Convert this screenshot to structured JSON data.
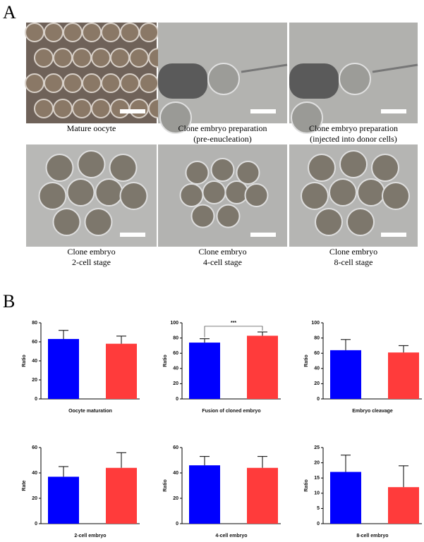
{
  "panel_labels": [
    "A",
    "B"
  ],
  "images": [
    {
      "caption": [
        "Mature oocyte"
      ]
    },
    {
      "caption": [
        "Clone embryo preparation",
        "(pre-enucleation)"
      ]
    },
    {
      "caption": [
        "Clone embryo preparation",
        "(injected into donor cells)"
      ]
    },
    {
      "caption": [
        "Clone embryo",
        "2-cell stage"
      ]
    },
    {
      "caption": [
        "Clone embryo",
        "4-cell stage"
      ]
    },
    {
      "caption": [
        "Clone embryo",
        "8-cell stage"
      ]
    }
  ],
  "chart_data": [
    {
      "type": "bar",
      "xlabel": "Oocyte maturation",
      "ylabel": "Ratio",
      "values": [
        63,
        58
      ],
      "errors": [
        9,
        8
      ],
      "colors": [
        "#0000ff",
        "#ff3b3b"
      ],
      "ylim": [
        0,
        80
      ],
      "yticks": [
        0,
        20,
        40,
        60,
        80
      ]
    },
    {
      "type": "bar",
      "xlabel": "Fusion of cloned embryo",
      "ylabel": "Ratio",
      "annotation": "***",
      "values": [
        74,
        83
      ],
      "errors": [
        5,
        5
      ],
      "colors": [
        "#0000ff",
        "#ff3b3b"
      ],
      "ylim": [
        0,
        100
      ],
      "yticks": [
        0,
        20,
        40,
        60,
        80,
        100
      ]
    },
    {
      "type": "bar",
      "xlabel": "Embryo cleavage",
      "ylabel": "Ratio",
      "values": [
        64,
        61
      ],
      "errors": [
        14,
        9
      ],
      "colors": [
        "#0000ff",
        "#ff3b3b"
      ],
      "ylim": [
        0,
        100
      ],
      "yticks": [
        0,
        20,
        40,
        60,
        80,
        100
      ]
    },
    {
      "type": "bar",
      "xlabel": "2-cell embryo",
      "ylabel": "Rate",
      "values": [
        37,
        44
      ],
      "errors": [
        8,
        12
      ],
      "colors": [
        "#0000ff",
        "#ff3b3b"
      ],
      "ylim": [
        0,
        60
      ],
      "yticks": [
        0,
        20,
        40,
        60
      ]
    },
    {
      "type": "bar",
      "xlabel": "4-cell embryo",
      "ylabel": "Ratio",
      "values": [
        46,
        44
      ],
      "errors": [
        7,
        9
      ],
      "colors": [
        "#0000ff",
        "#ff3b3b"
      ],
      "ylim": [
        0,
        60
      ],
      "yticks": [
        0,
        20,
        40,
        60
      ]
    },
    {
      "type": "bar",
      "xlabel": "8-cell embryo",
      "ylabel": "Ratio",
      "values": [
        17,
        12
      ],
      "errors": [
        5.5,
        7
      ],
      "colors": [
        "#0000ff",
        "#ff3b3b"
      ],
      "ylim": [
        0,
        25
      ],
      "yticks": [
        0,
        5,
        10,
        15,
        20,
        25
      ]
    }
  ]
}
